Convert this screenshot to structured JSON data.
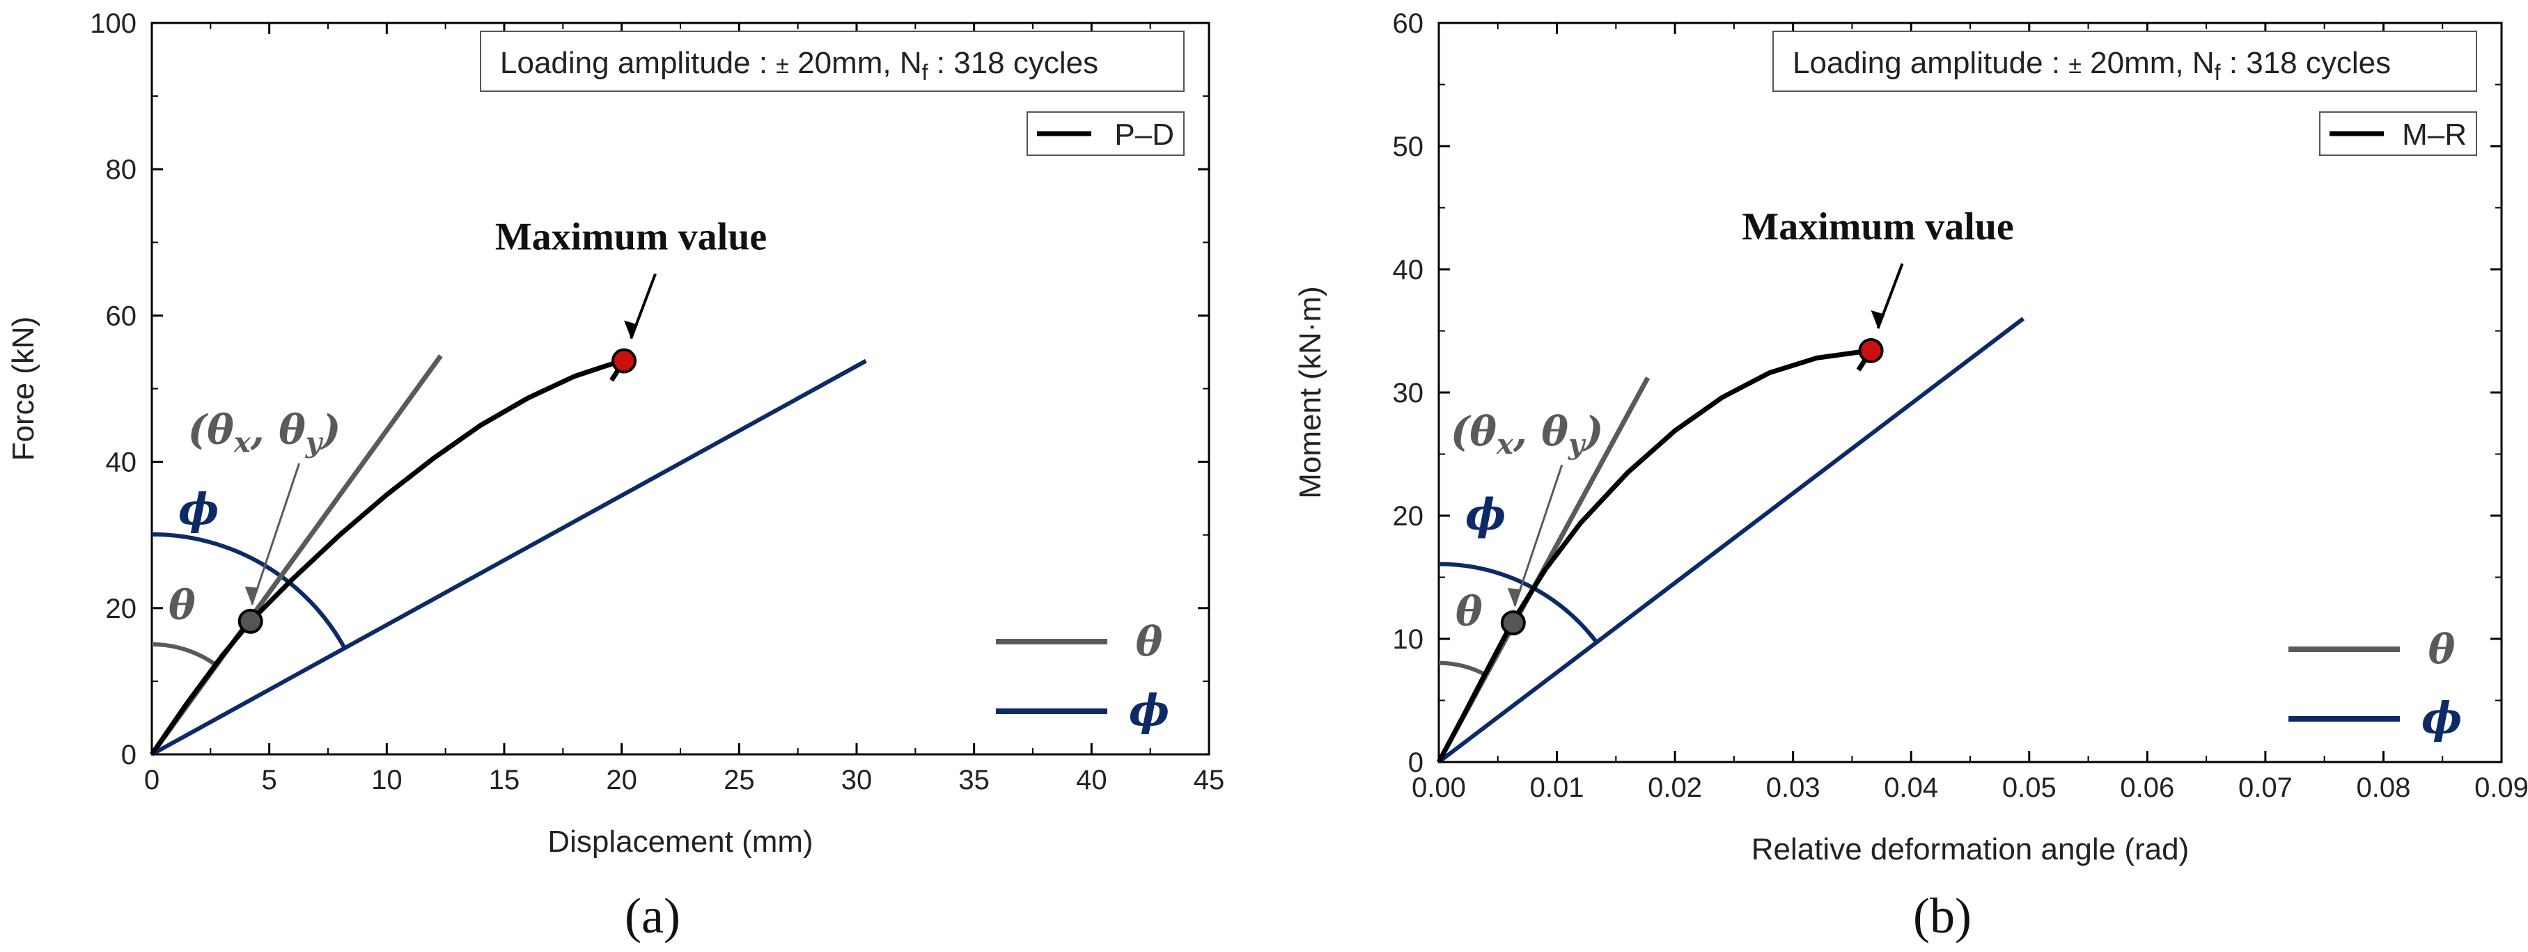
{
  "chart_data": [
    {
      "type": "line",
      "panel_label": "(a)",
      "xlabel": "Displacement (mm)",
      "ylabel": "Force (kN)",
      "xlim": [
        0,
        45
      ],
      "ylim": [
        0,
        100
      ],
      "x_ticks": [
        0,
        5,
        10,
        15,
        20,
        25,
        30,
        35,
        40,
        45
      ],
      "y_ticks": [
        0,
        20,
        40,
        60,
        80,
        100
      ],
      "info_box": {
        "prefix": "Loading amplitude : ",
        "pm": "±",
        "amp": " 20mm, N",
        "sub": "f",
        "suffix": " : 318 cycles"
      },
      "series": [
        {
          "name": "P–D",
          "color": "#000000",
          "x": [
            0,
            1.5,
            3,
            4.2,
            6,
            8,
            10,
            12,
            14,
            16,
            18,
            19.5,
            20
          ],
          "y": [
            0,
            7,
            13.5,
            18.2,
            24,
            30,
            35.5,
            40.5,
            45,
            48.7,
            51.7,
            53.3,
            53.8
          ]
        },
        {
          "name": "θ",
          "color": "#5a5a5a",
          "x": [
            0,
            12.3
          ],
          "y": [
            0,
            54.5
          ]
        },
        {
          "name": "ϕ",
          "color": "#0d2a68",
          "x": [
            0,
            30.4
          ],
          "y": [
            0,
            53.8
          ]
        }
      ],
      "markers": [
        {
          "label": "(θx, θy)",
          "x": 4.2,
          "y": 18.2,
          "color": "#5a5a5a"
        },
        {
          "label": "Maximum value",
          "x": 20.1,
          "y": 53.8,
          "color": "#cc1010"
        }
      ],
      "legend_placement": "top-right",
      "symbol_legend_placement": "bottom-right",
      "grid": false
    },
    {
      "type": "line",
      "panel_label": "(b)",
      "xlabel": "Relative deformation angle (rad)",
      "ylabel": "Moment (kN·m)",
      "xlim": [
        0,
        0.09
      ],
      "ylim": [
        0,
        60
      ],
      "x_ticks": [
        "0.00",
        "0.01",
        "0.02",
        "0.03",
        "0.04",
        "0.05",
        "0.06",
        "0.07",
        "0.08",
        "0.09"
      ],
      "y_ticks": [
        0,
        10,
        20,
        30,
        40,
        50,
        60
      ],
      "info_box": {
        "prefix": "Loading amplitude : ",
        "pm": "±",
        "amp": " 20mm, N",
        "sub": "f",
        "suffix": " : 318 cycles"
      },
      "series": [
        {
          "name": "M–R",
          "color": "#000000",
          "x": [
            0,
            0.002,
            0.004,
            0.0062,
            0.009,
            0.012,
            0.016,
            0.02,
            0.024,
            0.028,
            0.032,
            0.035,
            0.0365
          ],
          "y": [
            0,
            3.6,
            7.3,
            11.3,
            15.6,
            19.4,
            23.5,
            26.9,
            29.6,
            31.6,
            32.8,
            33.2,
            33.4
          ]
        },
        {
          "name": "θ",
          "color": "#5a5a5a",
          "x": [
            0,
            0.0177
          ],
          "y": [
            0,
            31.2
          ]
        },
        {
          "name": "ϕ",
          "color": "#0d2a68",
          "x": [
            0,
            0.0495
          ],
          "y": [
            0,
            36
          ]
        }
      ],
      "markers": [
        {
          "label": "(θx, θy)",
          "x": 0.0063,
          "y": 11.3,
          "color": "#5a5a5a"
        },
        {
          "label": "Maximum value",
          "x": 0.0366,
          "y": 33.4,
          "color": "#cc1010"
        }
      ],
      "legend_placement": "top-right",
      "symbol_legend_placement": "bottom-right",
      "grid": false
    }
  ],
  "symbols": {
    "theta": "θ",
    "phi": "ϕ",
    "open": "(",
    "comma": ", ",
    "close": ")",
    "sub_x": "x",
    "sub_y": "y"
  },
  "colors": {
    "curve": "#000000",
    "theta": "#5a5a5a",
    "phi": "#0d2a68",
    "max_point": "#cc1010",
    "yield_point": "#555555"
  }
}
